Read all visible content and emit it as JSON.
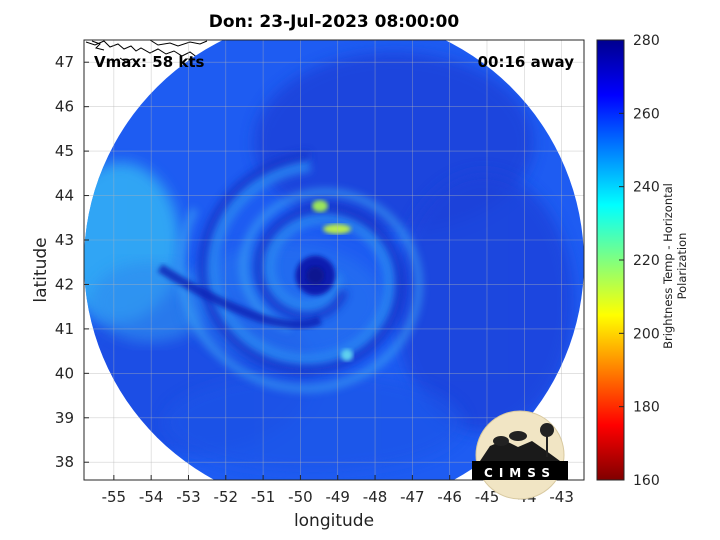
{
  "chart_data": {
    "type": "heatmap",
    "title": "Don: 23-Jul-2023 08:00:00",
    "annotations": {
      "left": "Vmax: 58 kts",
      "right": "00:16 away"
    },
    "xlabel": "longitude",
    "ylabel": "latitude",
    "xlim": [
      -55.8,
      -42.4
    ],
    "ylim": [
      37.6,
      47.5
    ],
    "x_ticks": [
      -55,
      -54,
      -53,
      -52,
      -51,
      -50,
      -49,
      -48,
      -47,
      -46,
      -45,
      -44,
      -43
    ],
    "y_ticks": [
      38,
      39,
      40,
      41,
      42,
      43,
      44,
      45,
      46,
      47
    ],
    "grid": true,
    "swath_center": {
      "lon": -49.1,
      "lat": 42.5
    },
    "storm_center": {
      "lon": -49.6,
      "lat": 42.2
    },
    "colorbar": {
      "label": "Brightness Temp - Horizontal Polarization",
      "range": [
        160,
        280
      ],
      "ticks": [
        160,
        180,
        200,
        220,
        240,
        260,
        280
      ],
      "colormap": [
        "#800000",
        "#ff0000",
        "#ff8000",
        "#ffff00",
        "#80ff80",
        "#00ffff",
        "#0080ff",
        "#0000ff",
        "#00008f"
      ]
    },
    "logo_text": "CIMSS"
  }
}
